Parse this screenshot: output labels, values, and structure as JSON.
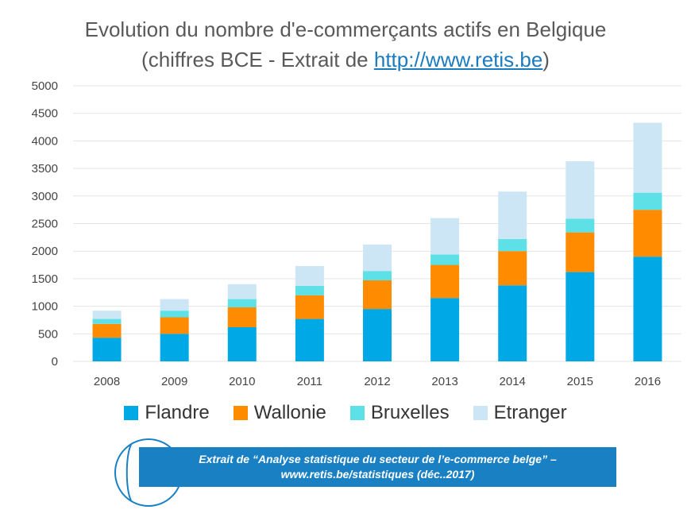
{
  "title": {
    "line1": "Evolution du nombre d'e-commerçants actifs en Belgique",
    "line2_prefix": "(chiffres BCE - Extrait de ",
    "link": "http://www.retis.be",
    "line2_suffix": ")"
  },
  "chart_data": {
    "type": "bar",
    "stacked": true,
    "categories": [
      "2008",
      "2009",
      "2010",
      "2011",
      "2012",
      "2013",
      "2014",
      "2015",
      "2016"
    ],
    "series": [
      {
        "name": "Flandre",
        "color": "#00a9e6",
        "values": [
          430,
          500,
          620,
          770,
          950,
          1150,
          1380,
          1620,
          1900
        ]
      },
      {
        "name": "Wallonie",
        "color": "#ff8c00",
        "values": [
          250,
          300,
          360,
          430,
          520,
          600,
          620,
          720,
          850
        ]
      },
      {
        "name": "Bruxelles",
        "color": "#5de0e6",
        "values": [
          90,
          120,
          150,
          170,
          170,
          190,
          220,
          250,
          310
        ]
      },
      {
        "name": "Etranger",
        "color": "#cce6f5",
        "values": [
          150,
          210,
          270,
          360,
          480,
          660,
          860,
          1040,
          1270
        ]
      }
    ],
    "ylim": [
      0,
      5000
    ],
    "yticks": [
      "0",
      "500",
      "1000",
      "1500",
      "2000",
      "2500",
      "3000",
      "3500",
      "4000",
      "4500",
      "5000"
    ],
    "grid": true,
    "legend_position": "bottom"
  },
  "footer": {
    "line1": "Extrait de “Analyse statistique du secteur de l’e-commerce belge” –",
    "line2": "www.retis.be/statistiques  (déc..2017)"
  }
}
